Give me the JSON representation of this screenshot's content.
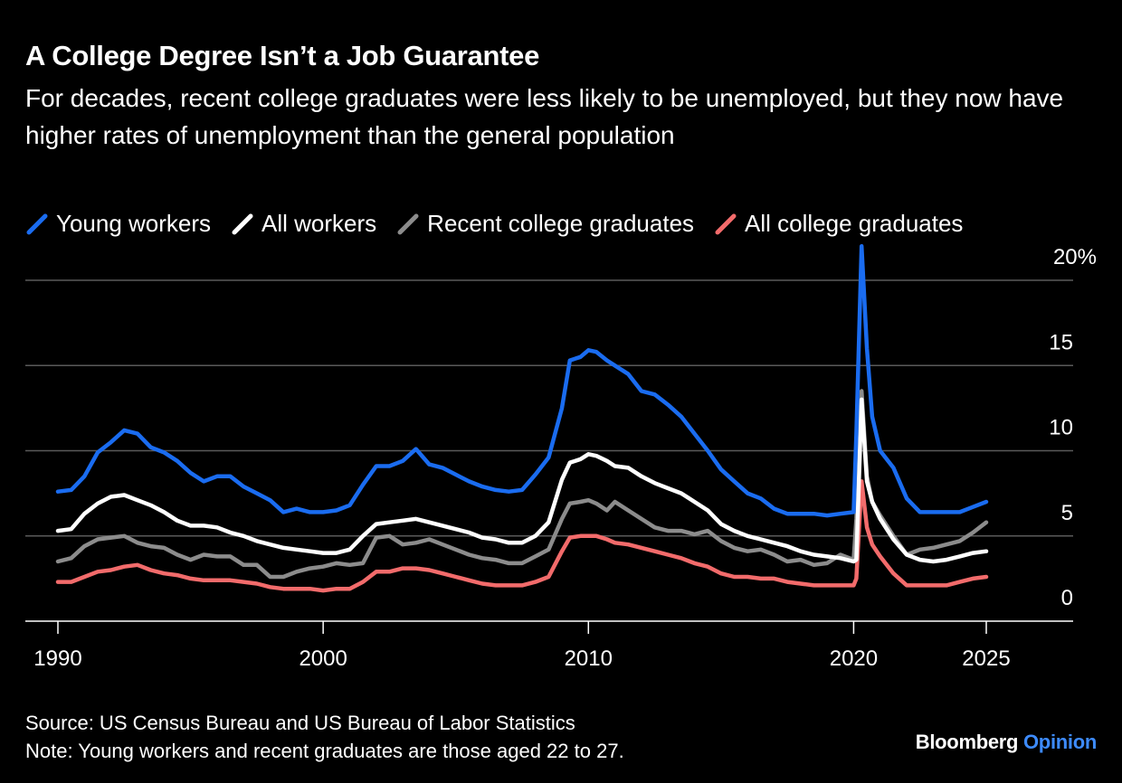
{
  "header": {
    "title": "A College Degree Isn’t a Job Guarantee",
    "subtitle": "For decades, recent college graduates were less likely to be unemployed, but they now have higher rates of unemployment than the general population"
  },
  "footer": {
    "source": "Source: US Census Bureau and US Bureau of Labor Statistics",
    "note": "Note: Young workers and recent graduates are those aged 22 to 27.",
    "brand_main": "Bloomberg",
    "brand_accent": "Opinion"
  },
  "chart_data": {
    "type": "line",
    "title": "A College Degree Isn’t a Job Guarantee",
    "xlabel": "",
    "ylabel": "",
    "xlim": [
      1990,
      2027.5
    ],
    "ylim": [
      0,
      20
    ],
    "x_ticks": [
      1990,
      2000,
      2010,
      2020,
      2025
    ],
    "x_tick_labels": [
      "1990",
      "2000",
      "2010",
      "2020",
      "2025"
    ],
    "y_ticks": [
      0,
      5,
      10,
      15,
      20
    ],
    "y_tick_labels": [
      "0",
      "5",
      "10",
      "15",
      "20%"
    ],
    "grid": true,
    "legend_position": "top",
    "colors": {
      "Young workers": "#1a6cf0",
      "All workers": "#ffffff",
      "Recent college graduates": "#8c8c8c",
      "All college graduates": "#f26b6b"
    },
    "series": [
      {
        "name": "Young workers",
        "x": [
          1990,
          1990.5,
          1991,
          1991.5,
          1992,
          1992.5,
          1993,
          1993.5,
          1994,
          1994.5,
          1995,
          1995.5,
          1996,
          1996.5,
          1997,
          1997.5,
          1998,
          1998.5,
          1999,
          1999.5,
          2000,
          2000.5,
          2001,
          2001.5,
          2002,
          2002.5,
          2003,
          2003.5,
          2004,
          2004.5,
          2005,
          2005.5,
          2006,
          2006.5,
          2007,
          2007.5,
          2008,
          2008.5,
          2009,
          2009.3,
          2009.7,
          2010,
          2010.3,
          2010.7,
          2011,
          2011.5,
          2012,
          2012.5,
          2013,
          2013.5,
          2014,
          2014.5,
          2015,
          2015.5,
          2016,
          2016.5,
          2017,
          2017.5,
          2018,
          2018.5,
          2019,
          2019.5,
          2020,
          2020.1,
          2020.3,
          2020.5,
          2020.7,
          2021,
          2021.5,
          2022,
          2022.5,
          2023,
          2023.5,
          2024,
          2024.5,
          2025
        ],
        "values": [
          7.6,
          7.7,
          8.5,
          9.9,
          10.5,
          11.2,
          11.0,
          10.2,
          9.9,
          9.4,
          8.7,
          8.2,
          8.5,
          8.5,
          7.9,
          7.5,
          7.1,
          6.4,
          6.6,
          6.4,
          6.4,
          6.5,
          6.8,
          8.0,
          9.1,
          9.1,
          9.4,
          10.1,
          9.2,
          9.0,
          8.6,
          8.2,
          7.9,
          7.7,
          7.6,
          7.7,
          8.6,
          9.6,
          12.5,
          15.3,
          15.5,
          15.9,
          15.8,
          15.3,
          15.0,
          14.5,
          13.5,
          13.3,
          12.7,
          12.0,
          11.0,
          10.0,
          8.9,
          8.2,
          7.5,
          7.2,
          6.6,
          6.3,
          6.3,
          6.3,
          6.2,
          6.3,
          6.4,
          11.0,
          22.0,
          16.0,
          12.0,
          10.0,
          9.0,
          7.2,
          6.4,
          6.4,
          6.4,
          6.4,
          6.7,
          7.0
        ]
      },
      {
        "name": "All workers",
        "x": [
          1990,
          1990.5,
          1991,
          1991.5,
          1992,
          1992.5,
          1993,
          1993.5,
          1994,
          1994.5,
          1995,
          1995.5,
          1996,
          1996.5,
          1997,
          1997.5,
          1998,
          1998.5,
          1999,
          1999.5,
          2000,
          2000.5,
          2001,
          2001.5,
          2002,
          2002.5,
          2003,
          2003.5,
          2004,
          2004.5,
          2005,
          2005.5,
          2006,
          2006.5,
          2007,
          2007.5,
          2008,
          2008.5,
          2009,
          2009.3,
          2009.7,
          2010,
          2010.3,
          2010.7,
          2011,
          2011.5,
          2012,
          2012.5,
          2013,
          2013.5,
          2014,
          2014.5,
          2015,
          2015.5,
          2016,
          2016.5,
          2017,
          2017.5,
          2018,
          2018.5,
          2019,
          2019.5,
          2020,
          2020.1,
          2020.3,
          2020.5,
          2020.7,
          2021,
          2021.5,
          2022,
          2022.5,
          2023,
          2023.5,
          2024,
          2024.5,
          2025
        ],
        "values": [
          5.3,
          5.4,
          6.3,
          6.9,
          7.3,
          7.4,
          7.1,
          6.8,
          6.4,
          5.9,
          5.6,
          5.6,
          5.5,
          5.2,
          5.0,
          4.7,
          4.5,
          4.3,
          4.2,
          4.1,
          4.0,
          4.0,
          4.2,
          5.0,
          5.7,
          5.8,
          5.9,
          6.0,
          5.8,
          5.6,
          5.4,
          5.2,
          4.9,
          4.8,
          4.6,
          4.6,
          5.0,
          5.8,
          8.3,
          9.3,
          9.5,
          9.8,
          9.7,
          9.4,
          9.1,
          9.0,
          8.5,
          8.1,
          7.8,
          7.5,
          7.0,
          6.5,
          5.7,
          5.3,
          5.0,
          4.8,
          4.6,
          4.4,
          4.1,
          3.9,
          3.8,
          3.7,
          3.5,
          3.6,
          13.0,
          8.2,
          7.0,
          6.0,
          4.8,
          3.9,
          3.6,
          3.5,
          3.6,
          3.8,
          4.0,
          4.1
        ]
      },
      {
        "name": "Recent college graduates",
        "x": [
          1990,
          1990.5,
          1991,
          1991.5,
          1992,
          1992.5,
          1993,
          1993.5,
          1994,
          1994.5,
          1995,
          1995.5,
          1996,
          1996.5,
          1997,
          1997.5,
          1998,
          1998.5,
          1999,
          1999.5,
          2000,
          2000.5,
          2001,
          2001.5,
          2002,
          2002.5,
          2003,
          2003.5,
          2004,
          2004.5,
          2005,
          2005.5,
          2006,
          2006.5,
          2007,
          2007.5,
          2008,
          2008.5,
          2009,
          2009.3,
          2009.7,
          2010,
          2010.3,
          2010.7,
          2011,
          2011.5,
          2012,
          2012.5,
          2013,
          2013.5,
          2014,
          2014.5,
          2015,
          2015.5,
          2016,
          2016.5,
          2017,
          2017.5,
          2018,
          2018.5,
          2019,
          2019.5,
          2020,
          2020.1,
          2020.3,
          2020.5,
          2020.7,
          2021,
          2021.5,
          2022,
          2022.5,
          2023,
          2023.5,
          2024,
          2024.5,
          2025
        ],
        "values": [
          3.5,
          3.7,
          4.4,
          4.8,
          4.9,
          5.0,
          4.6,
          4.4,
          4.3,
          3.9,
          3.6,
          3.9,
          3.8,
          3.8,
          3.3,
          3.3,
          2.6,
          2.6,
          2.9,
          3.1,
          3.2,
          3.4,
          3.3,
          3.4,
          4.9,
          5.0,
          4.5,
          4.6,
          4.8,
          4.5,
          4.2,
          3.9,
          3.7,
          3.6,
          3.4,
          3.4,
          3.8,
          4.2,
          6.0,
          6.9,
          7.0,
          7.1,
          6.9,
          6.5,
          7.0,
          6.5,
          6.0,
          5.5,
          5.3,
          5.3,
          5.1,
          5.3,
          4.7,
          4.3,
          4.1,
          4.2,
          3.9,
          3.5,
          3.6,
          3.3,
          3.4,
          3.9,
          3.6,
          6.0,
          13.5,
          8.5,
          7.0,
          6.2,
          5.0,
          3.9,
          4.2,
          4.3,
          4.5,
          4.7,
          5.2,
          5.8
        ]
      },
      {
        "name": "All college graduates",
        "x": [
          1990,
          1990.5,
          1991,
          1991.5,
          1992,
          1992.5,
          1993,
          1993.5,
          1994,
          1994.5,
          1995,
          1995.5,
          1996,
          1996.5,
          1997,
          1997.5,
          1998,
          1998.5,
          1999,
          1999.5,
          2000,
          2000.5,
          2001,
          2001.5,
          2002,
          2002.5,
          2003,
          2003.5,
          2004,
          2004.5,
          2005,
          2005.5,
          2006,
          2006.5,
          2007,
          2007.5,
          2008,
          2008.5,
          2009,
          2009.3,
          2009.7,
          2010,
          2010.3,
          2010.7,
          2011,
          2011.5,
          2012,
          2012.5,
          2013,
          2013.5,
          2014,
          2014.5,
          2015,
          2015.5,
          2016,
          2016.5,
          2017,
          2017.5,
          2018,
          2018.5,
          2019,
          2019.5,
          2020,
          2020.1,
          2020.3,
          2020.5,
          2020.7,
          2021,
          2021.5,
          2022,
          2022.5,
          2023,
          2023.5,
          2024,
          2024.5,
          2025
        ],
        "values": [
          2.3,
          2.3,
          2.6,
          2.9,
          3.0,
          3.2,
          3.3,
          3.0,
          2.8,
          2.7,
          2.5,
          2.4,
          2.4,
          2.4,
          2.3,
          2.2,
          2.0,
          1.9,
          1.9,
          1.9,
          1.8,
          1.9,
          1.9,
          2.3,
          2.9,
          2.9,
          3.1,
          3.1,
          3.0,
          2.8,
          2.6,
          2.4,
          2.2,
          2.1,
          2.1,
          2.1,
          2.3,
          2.6,
          4.1,
          4.9,
          5.0,
          5.0,
          5.0,
          4.8,
          4.6,
          4.5,
          4.3,
          4.1,
          3.9,
          3.7,
          3.4,
          3.2,
          2.8,
          2.6,
          2.6,
          2.5,
          2.5,
          2.3,
          2.2,
          2.1,
          2.1,
          2.1,
          2.1,
          2.5,
          8.2,
          5.5,
          4.5,
          3.8,
          2.8,
          2.1,
          2.1,
          2.1,
          2.1,
          2.3,
          2.5,
          2.6
        ]
      }
    ]
  }
}
